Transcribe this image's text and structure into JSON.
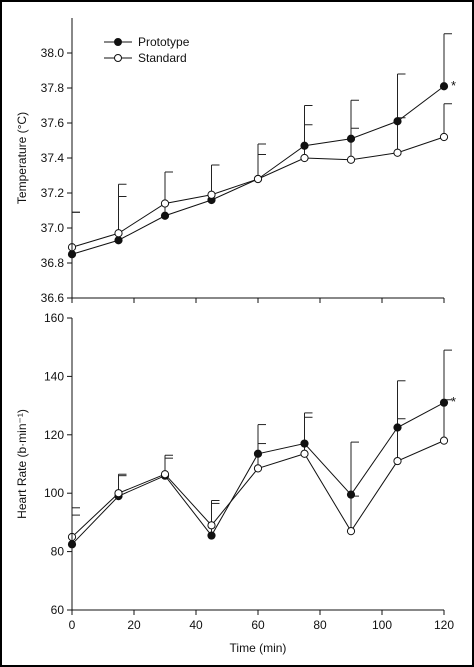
{
  "chart_data": [
    {
      "type": "line",
      "title": "",
      "xlabel": "",
      "ylabel": "Temperature (°C)",
      "xlim": [
        0,
        120
      ],
      "ylim": [
        36.6,
        38.2
      ],
      "yticks": [
        "36.6",
        "36.8",
        "37.0",
        "37.2",
        "37.4",
        "37.6",
        "37.8",
        "38.0"
      ],
      "x": [
        0,
        15,
        30,
        45,
        60,
        75,
        90,
        105,
        120
      ],
      "legend_position": "top-left",
      "series": [
        {
          "name": "Prototype",
          "marker": "filled-circle",
          "values": [
            36.85,
            36.93,
            37.07,
            37.16,
            37.28,
            37.47,
            37.51,
            37.61,
            37.81
          ],
          "sd": [
            0.24,
            0.32,
            0.25,
            0.2,
            0.2,
            0.23,
            0.22,
            0.27,
            0.3
          ]
        },
        {
          "name": "Standard",
          "marker": "open-circle",
          "values": [
            36.89,
            36.97,
            37.14,
            37.19,
            37.28,
            37.4,
            37.39,
            37.43,
            37.52
          ],
          "sd": [
            0.2,
            0.21,
            0.18,
            0.17,
            0.14,
            0.19,
            0.18,
            0.2,
            0.19
          ]
        }
      ],
      "annotations": [
        {
          "x": 120,
          "text": "*"
        }
      ]
    },
    {
      "type": "line",
      "title": "",
      "xlabel": "Time (min)",
      "ylabel": "Heart Rate (b·min⁻¹)",
      "xlim": [
        0,
        120
      ],
      "ylim": [
        60,
        160
      ],
      "xticks": [
        "0",
        "20",
        "40",
        "60",
        "80",
        "100",
        "120"
      ],
      "yticks": [
        "60",
        "80",
        "100",
        "120",
        "140",
        "160"
      ],
      "x": [
        0,
        15,
        30,
        45,
        60,
        75,
        90,
        105,
        120
      ],
      "series": [
        {
          "name": "Prototype",
          "marker": "filled-circle",
          "values": [
            82.5,
            99,
            106,
            85.5,
            113.5,
            117,
            99.5,
            122.5,
            131
          ],
          "sd": [
            10,
            7,
            6,
            11,
            10,
            10.5,
            18,
            16,
            18
          ]
        },
        {
          "name": "Standard",
          "marker": "open-circle",
          "values": [
            85,
            100,
            106.5,
            89,
            108.5,
            113.5,
            87,
            111,
            118
          ],
          "sd": [
            10,
            6.5,
            6.5,
            8.5,
            8.5,
            12.5,
            12,
            14.5,
            14
          ]
        }
      ],
      "annotations": [
        {
          "x": 120,
          "text": "*"
        }
      ]
    }
  ]
}
